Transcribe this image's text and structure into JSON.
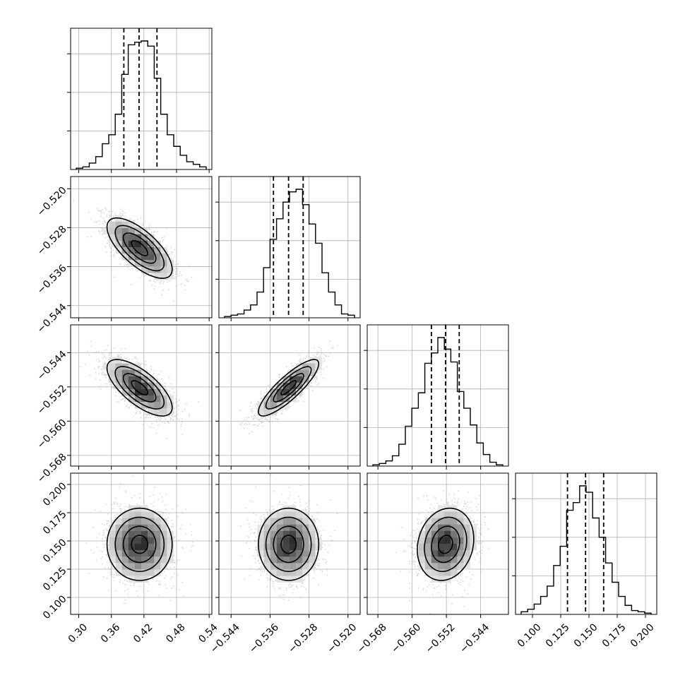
{
  "chart_data": {
    "type": "corner",
    "grid": true,
    "parameters": [
      {
        "range": [
          0.285,
          0.545
        ],
        "ticks": [
          "0.30",
          "0.36",
          "0.42",
          "0.48",
          "0.54"
        ],
        "quantiles": [
          0.383,
          0.411,
          0.444
        ],
        "mean": 0.412,
        "std": 0.03,
        "hist": [
          0.01,
          0.02,
          0.05,
          0.1,
          0.2,
          0.27,
          0.43,
          0.74,
          0.97,
          0.99,
          1.0,
          0.96,
          0.71,
          0.43,
          0.27,
          0.18,
          0.11,
          0.06,
          0.04,
          0.02
        ]
      },
      {
        "range": [
          -0.5465,
          -0.5175
        ],
        "ticks": [
          "-0.544",
          "-0.536",
          "-0.528",
          "-0.520"
        ],
        "quantiles": [
          -0.5353,
          -0.5322,
          -0.5292
        ],
        "mean": -0.5322,
        "std": 0.0031,
        "hist": [
          0.01,
          0.02,
          0.03,
          0.06,
          0.1,
          0.2,
          0.39,
          0.61,
          0.77,
          0.9,
          0.98,
          1.0,
          0.88,
          0.73,
          0.58,
          0.35,
          0.2,
          0.1,
          0.03,
          0.02
        ]
      },
      {
        "range": [
          -0.5705,
          -0.5375
        ],
        "ticks": [
          "-0.568",
          "-0.560",
          "-0.552",
          "-0.544"
        ],
        "quantiles": [
          -0.5555,
          -0.5522,
          -0.549
        ],
        "mean": -0.5522,
        "std": 0.0033,
        "hist": [
          0.01,
          0.02,
          0.04,
          0.08,
          0.17,
          0.31,
          0.45,
          0.57,
          0.8,
          0.88,
          1.0,
          0.91,
          0.81,
          0.58,
          0.45,
          0.32,
          0.18,
          0.09,
          0.03,
          0.01
        ]
      },
      {
        "range": [
          0.085,
          0.21
        ],
        "ticks": [
          "0.100",
          "0.125",
          "0.150",
          "0.175",
          "0.200"
        ],
        "quantiles": [
          0.131,
          0.147,
          0.163
        ],
        "mean": 0.147,
        "std": 0.016,
        "hist": [
          0.02,
          0.04,
          0.08,
          0.14,
          0.22,
          0.38,
          0.53,
          0.81,
          0.87,
          1.0,
          0.95,
          0.75,
          0.6,
          0.4,
          0.25,
          0.14,
          0.07,
          0.03,
          0.02,
          0.01
        ]
      }
    ],
    "correlations": [
      [
        1.0,
        -0.7,
        -0.7,
        0.0
      ],
      [
        -0.7,
        1.0,
        0.85,
        0.0
      ],
      [
        -0.7,
        0.85,
        1.0,
        0.15
      ],
      [
        0.0,
        0.0,
        0.15,
        1.0
      ]
    ],
    "contour_levels_sigma": [
      0.5,
      1.0,
      1.5,
      2.0
    ],
    "samples_per_panel": 1800
  }
}
